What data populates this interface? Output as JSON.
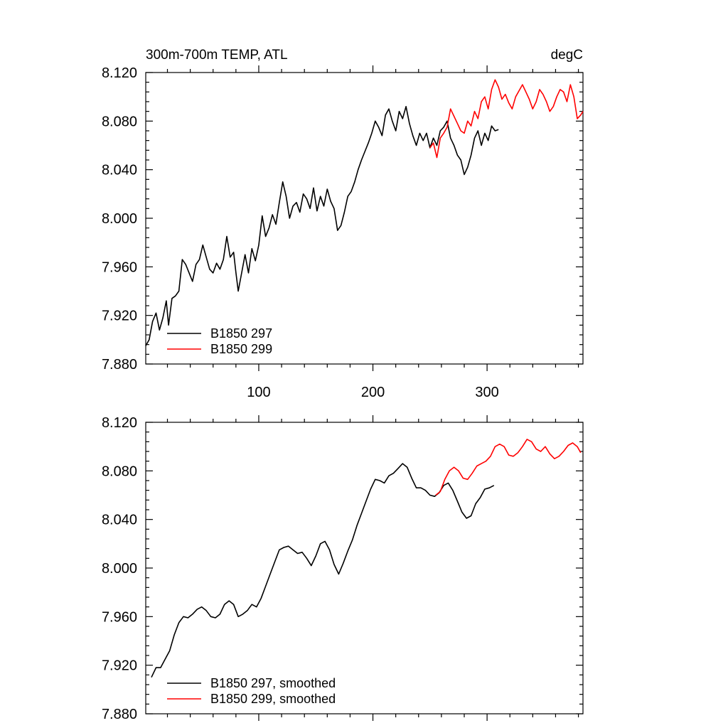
{
  "chart_data": [
    {
      "type": "line",
      "panel": "top",
      "title_left": "300m-700m TEMP, ATL",
      "title_right": "degC",
      "xlim": [
        1,
        384
      ],
      "ylim": [
        7.88,
        8.12
      ],
      "x_ticks": [
        100,
        200,
        300
      ],
      "x_tick_labels": [
        "100",
        "200",
        "300"
      ],
      "y_ticks": [
        7.88,
        7.92,
        7.96,
        8.0,
        8.04,
        8.08,
        8.12
      ],
      "y_tick_labels": [
        "7.880",
        "7.920",
        "7.960",
        "8.000",
        "8.040",
        "8.080",
        "8.120"
      ],
      "legend_position": "bottom-left",
      "series": [
        {
          "name": "B1850 297",
          "color": "#000000",
          "points": [
            [
              1,
              7.895
            ],
            [
              4,
              7.9
            ],
            [
              7,
              7.915
            ],
            [
              10,
              7.922
            ],
            [
              13,
              7.908
            ],
            [
              16,
              7.918
            ],
            [
              19,
              7.932
            ],
            [
              21,
              7.912
            ],
            [
              24,
              7.934
            ],
            [
              27,
              7.936
            ],
            [
              30,
              7.94
            ],
            [
              33,
              7.966
            ],
            [
              36,
              7.962
            ],
            [
              39,
              7.955
            ],
            [
              42,
              7.948
            ],
            [
              45,
              7.962
            ],
            [
              48,
              7.966
            ],
            [
              51,
              7.978
            ],
            [
              54,
              7.968
            ],
            [
              57,
              7.958
            ],
            [
              60,
              7.955
            ],
            [
              63,
              7.963
            ],
            [
              66,
              7.958
            ],
            [
              69,
              7.966
            ],
            [
              72,
              7.985
            ],
            [
              75,
              7.968
            ],
            [
              78,
              7.972
            ],
            [
              80,
              7.955
            ],
            [
              82,
              7.94
            ],
            [
              85,
              7.955
            ],
            [
              88,
              7.97
            ],
            [
              91,
              7.955
            ],
            [
              94,
              7.975
            ],
            [
              97,
              7.965
            ],
            [
              100,
              7.978
            ],
            [
              103,
              8.002
            ],
            [
              106,
              7.985
            ],
            [
              109,
              7.992
            ],
            [
              112,
              8.003
            ],
            [
              115,
              7.995
            ],
            [
              118,
              8.013
            ],
            [
              121,
              8.03
            ],
            [
              124,
              8.018
            ],
            [
              127,
              8.0
            ],
            [
              130,
              8.01
            ],
            [
              133,
              8.013
            ],
            [
              136,
              8.005
            ],
            [
              139,
              8.02
            ],
            [
              142,
              8.016
            ],
            [
              145,
              8.008
            ],
            [
              148,
              8.025
            ],
            [
              151,
              8.006
            ],
            [
              154,
              8.018
            ],
            [
              157,
              8.01
            ],
            [
              160,
              8.024
            ],
            [
              163,
              8.014
            ],
            [
              166,
              8.008
            ],
            [
              169,
              7.99
            ],
            [
              172,
              7.994
            ],
            [
              175,
              8.005
            ],
            [
              178,
              8.018
            ],
            [
              181,
              8.022
            ],
            [
              184,
              8.03
            ],
            [
              187,
              8.04
            ],
            [
              190,
              8.048
            ],
            [
              193,
              8.055
            ],
            [
              196,
              8.062
            ],
            [
              199,
              8.07
            ],
            [
              202,
              8.08
            ],
            [
              205,
              8.075
            ],
            [
              208,
              8.068
            ],
            [
              211,
              8.085
            ],
            [
              214,
              8.09
            ],
            [
              217,
              8.08
            ],
            [
              220,
              8.072
            ],
            [
              223,
              8.088
            ],
            [
              226,
              8.082
            ],
            [
              229,
              8.092
            ],
            [
              232,
              8.078
            ],
            [
              235,
              8.068
            ],
            [
              238,
              8.06
            ],
            [
              241,
              8.07
            ],
            [
              244,
              8.064
            ],
            [
              247,
              8.07
            ],
            [
              250,
              8.058
            ],
            [
              253,
              8.066
            ],
            [
              256,
              8.06
            ],
            [
              259,
              8.072
            ],
            [
              262,
              8.075
            ],
            [
              265,
              8.08
            ],
            [
              268,
              8.066
            ],
            [
              271,
              8.06
            ],
            [
              274,
              8.052
            ],
            [
              277,
              8.048
            ],
            [
              280,
              8.036
            ],
            [
              283,
              8.042
            ],
            [
              286,
              8.052
            ],
            [
              289,
              8.066
            ],
            [
              292,
              8.072
            ],
            [
              295,
              8.06
            ],
            [
              298,
              8.07
            ],
            [
              301,
              8.064
            ],
            [
              304,
              8.076
            ],
            [
              307,
              8.072
            ],
            [
              310,
              8.073
            ]
          ]
        },
        {
          "name": "B1850 299",
          "color": "#ff0000",
          "points": [
            [
              250,
              8.058
            ],
            [
              253,
              8.062
            ],
            [
              256,
              8.05
            ],
            [
              259,
              8.066
            ],
            [
              262,
              8.07
            ],
            [
              265,
              8.075
            ],
            [
              268,
              8.09
            ],
            [
              271,
              8.084
            ],
            [
              274,
              8.078
            ],
            [
              277,
              8.072
            ],
            [
              280,
              8.07
            ],
            [
              283,
              8.08
            ],
            [
              286,
              8.076
            ],
            [
              289,
              8.088
            ],
            [
              292,
              8.082
            ],
            [
              295,
              8.096
            ],
            [
              298,
              8.1
            ],
            [
              301,
              8.09
            ],
            [
              304,
              8.106
            ],
            [
              307,
              8.114
            ],
            [
              310,
              8.108
            ],
            [
              313,
              8.098
            ],
            [
              316,
              8.102
            ],
            [
              319,
              8.095
            ],
            [
              322,
              8.09
            ],
            [
              325,
              8.1
            ],
            [
              328,
              8.105
            ],
            [
              331,
              8.11
            ],
            [
              334,
              8.104
            ],
            [
              337,
              8.098
            ],
            [
              340,
              8.09
            ],
            [
              343,
              8.096
            ],
            [
              346,
              8.106
            ],
            [
              349,
              8.102
            ],
            [
              352,
              8.096
            ],
            [
              355,
              8.088
            ],
            [
              358,
              8.092
            ],
            [
              361,
              8.1
            ],
            [
              364,
              8.106
            ],
            [
              367,
              8.104
            ],
            [
              370,
              8.096
            ],
            [
              373,
              8.11
            ],
            [
              376,
              8.1
            ],
            [
              379,
              8.082
            ],
            [
              382,
              8.085
            ],
            [
              384,
              8.088
            ]
          ]
        }
      ]
    },
    {
      "type": "line",
      "panel": "bottom",
      "xlim": [
        1,
        384
      ],
      "ylim": [
        7.88,
        8.12
      ],
      "x_ticks": [
        100,
        200,
        300
      ],
      "y_ticks": [
        7.88,
        7.92,
        7.96,
        8.0,
        8.04,
        8.08,
        8.12
      ],
      "y_tick_labels": [
        "7.880",
        "7.920",
        "7.960",
        "8.000",
        "8.040",
        "8.080",
        "8.120"
      ],
      "legend_position": "bottom-left",
      "series": [
        {
          "name": "B1850 297, smoothed",
          "color": "#000000",
          "points": [
            [
              6,
              7.91
            ],
            [
              10,
              7.918
            ],
            [
              14,
              7.918
            ],
            [
              18,
              7.925
            ],
            [
              22,
              7.932
            ],
            [
              26,
              7.945
            ],
            [
              30,
              7.955
            ],
            [
              34,
              7.96
            ],
            [
              38,
              7.959
            ],
            [
              42,
              7.962
            ],
            [
              46,
              7.966
            ],
            [
              50,
              7.968
            ],
            [
              54,
              7.965
            ],
            [
              58,
              7.96
            ],
            [
              62,
              7.959
            ],
            [
              66,
              7.962
            ],
            [
              70,
              7.97
            ],
            [
              74,
              7.973
            ],
            [
              78,
              7.97
            ],
            [
              82,
              7.96
            ],
            [
              86,
              7.962
            ],
            [
              90,
              7.965
            ],
            [
              94,
              7.97
            ],
            [
              98,
              7.968
            ],
            [
              102,
              7.975
            ],
            [
              106,
              7.985
            ],
            [
              110,
              7.995
            ],
            [
              114,
              8.005
            ],
            [
              118,
              8.015
            ],
            [
              122,
              8.017
            ],
            [
              126,
              8.018
            ],
            [
              130,
              8.015
            ],
            [
              134,
              8.012
            ],
            [
              138,
              8.013
            ],
            [
              142,
              8.008
            ],
            [
              146,
              8.002
            ],
            [
              150,
              8.01
            ],
            [
              154,
              8.02
            ],
            [
              158,
              8.022
            ],
            [
              162,
              8.015
            ],
            [
              166,
              8.003
            ],
            [
              170,
              7.995
            ],
            [
              174,
              8.004
            ],
            [
              178,
              8.014
            ],
            [
              182,
              8.023
            ],
            [
              186,
              8.035
            ],
            [
              190,
              8.045
            ],
            [
              194,
              8.055
            ],
            [
              198,
              8.065
            ],
            [
              202,
              8.073
            ],
            [
              206,
              8.072
            ],
            [
              210,
              8.07
            ],
            [
              214,
              8.076
            ],
            [
              218,
              8.078
            ],
            [
              222,
              8.082
            ],
            [
              226,
              8.086
            ],
            [
              230,
              8.083
            ],
            [
              234,
              8.074
            ],
            [
              238,
              8.066
            ],
            [
              242,
              8.066
            ],
            [
              246,
              8.064
            ],
            [
              250,
              8.06
            ],
            [
              254,
              8.059
            ],
            [
              258,
              8.062
            ],
            [
              262,
              8.068
            ],
            [
              266,
              8.07
            ],
            [
              270,
              8.064
            ],
            [
              274,
              8.055
            ],
            [
              278,
              8.046
            ],
            [
              282,
              8.041
            ],
            [
              286,
              8.043
            ],
            [
              290,
              8.053
            ],
            [
              294,
              8.058
            ],
            [
              298,
              8.065
            ],
            [
              302,
              8.066
            ],
            [
              306,
              8.068
            ]
          ]
        },
        {
          "name": "B1850 299, smoothed",
          "color": "#ff0000",
          "points": [
            [
              255,
              8.06
            ],
            [
              259,
              8.063
            ],
            [
              263,
              8.073
            ],
            [
              267,
              8.08
            ],
            [
              271,
              8.083
            ],
            [
              275,
              8.08
            ],
            [
              279,
              8.074
            ],
            [
              283,
              8.073
            ],
            [
              287,
              8.078
            ],
            [
              291,
              8.084
            ],
            [
              295,
              8.086
            ],
            [
              299,
              8.088
            ],
            [
              303,
              8.092
            ],
            [
              307,
              8.1
            ],
            [
              311,
              8.102
            ],
            [
              315,
              8.1
            ],
            [
              319,
              8.093
            ],
            [
              323,
              8.092
            ],
            [
              327,
              8.095
            ],
            [
              331,
              8.1
            ],
            [
              335,
              8.106
            ],
            [
              339,
              8.104
            ],
            [
              343,
              8.098
            ],
            [
              347,
              8.096
            ],
            [
              351,
              8.1
            ],
            [
              355,
              8.094
            ],
            [
              359,
              8.09
            ],
            [
              363,
              8.092
            ],
            [
              367,
              8.096
            ],
            [
              371,
              8.101
            ],
            [
              375,
              8.103
            ],
            [
              379,
              8.1
            ],
            [
              382,
              8.095
            ]
          ]
        }
      ]
    }
  ]
}
